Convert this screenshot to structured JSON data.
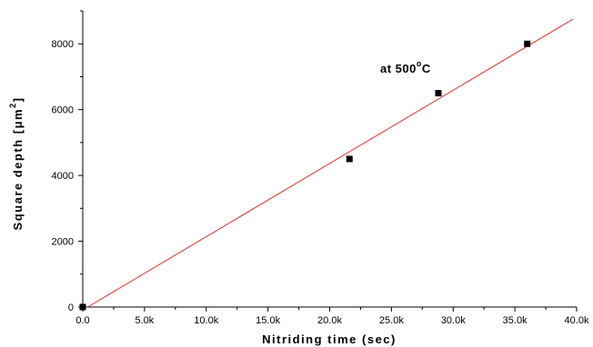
{
  "chart_data": {
    "type": "scatter",
    "title": "",
    "xlabel": "Nitriding time (sec)",
    "ylabel": "Square depth [μm",
    "ylabel_superscript": "2",
    "ylabel_close": "]",
    "xlim": [
      0,
      40000
    ],
    "ylim": [
      0,
      9000
    ],
    "x_ticks": [
      {
        "value": 0,
        "label": "0.0"
      },
      {
        "value": 5000,
        "label": "5.0k"
      },
      {
        "value": 10000,
        "label": "10.0k"
      },
      {
        "value": 15000,
        "label": "15.0k"
      },
      {
        "value": 20000,
        "label": "20.0k"
      },
      {
        "value": 25000,
        "label": "25.0k"
      },
      {
        "value": 30000,
        "label": "30.0k"
      },
      {
        "value": 35000,
        "label": "35.0k"
      },
      {
        "value": 40000,
        "label": "40.0k"
      }
    ],
    "y_ticks": [
      {
        "value": 0,
        "label": "0"
      },
      {
        "value": 2000,
        "label": "2000"
      },
      {
        "value": 4000,
        "label": "4000"
      },
      {
        "value": 6000,
        "label": "6000"
      },
      {
        "value": 8000,
        "label": "8000"
      }
    ],
    "grid": false,
    "series": [
      {
        "type": "scatter",
        "marker": "square",
        "color": "#000000",
        "points": [
          {
            "x": 0,
            "y": 0
          },
          {
            "x": 21600,
            "y": 4500
          },
          {
            "x": 28800,
            "y": 6500
          },
          {
            "x": 36000,
            "y": 8000
          }
        ]
      },
      {
        "type": "line",
        "color": "#e8302a",
        "points": [
          {
            "x": 400,
            "y": 0
          },
          {
            "x": 39700,
            "y": 8750
          }
        ]
      }
    ],
    "annotation": {
      "text": "at 500",
      "degree": "o",
      "unit": "C"
    }
  }
}
